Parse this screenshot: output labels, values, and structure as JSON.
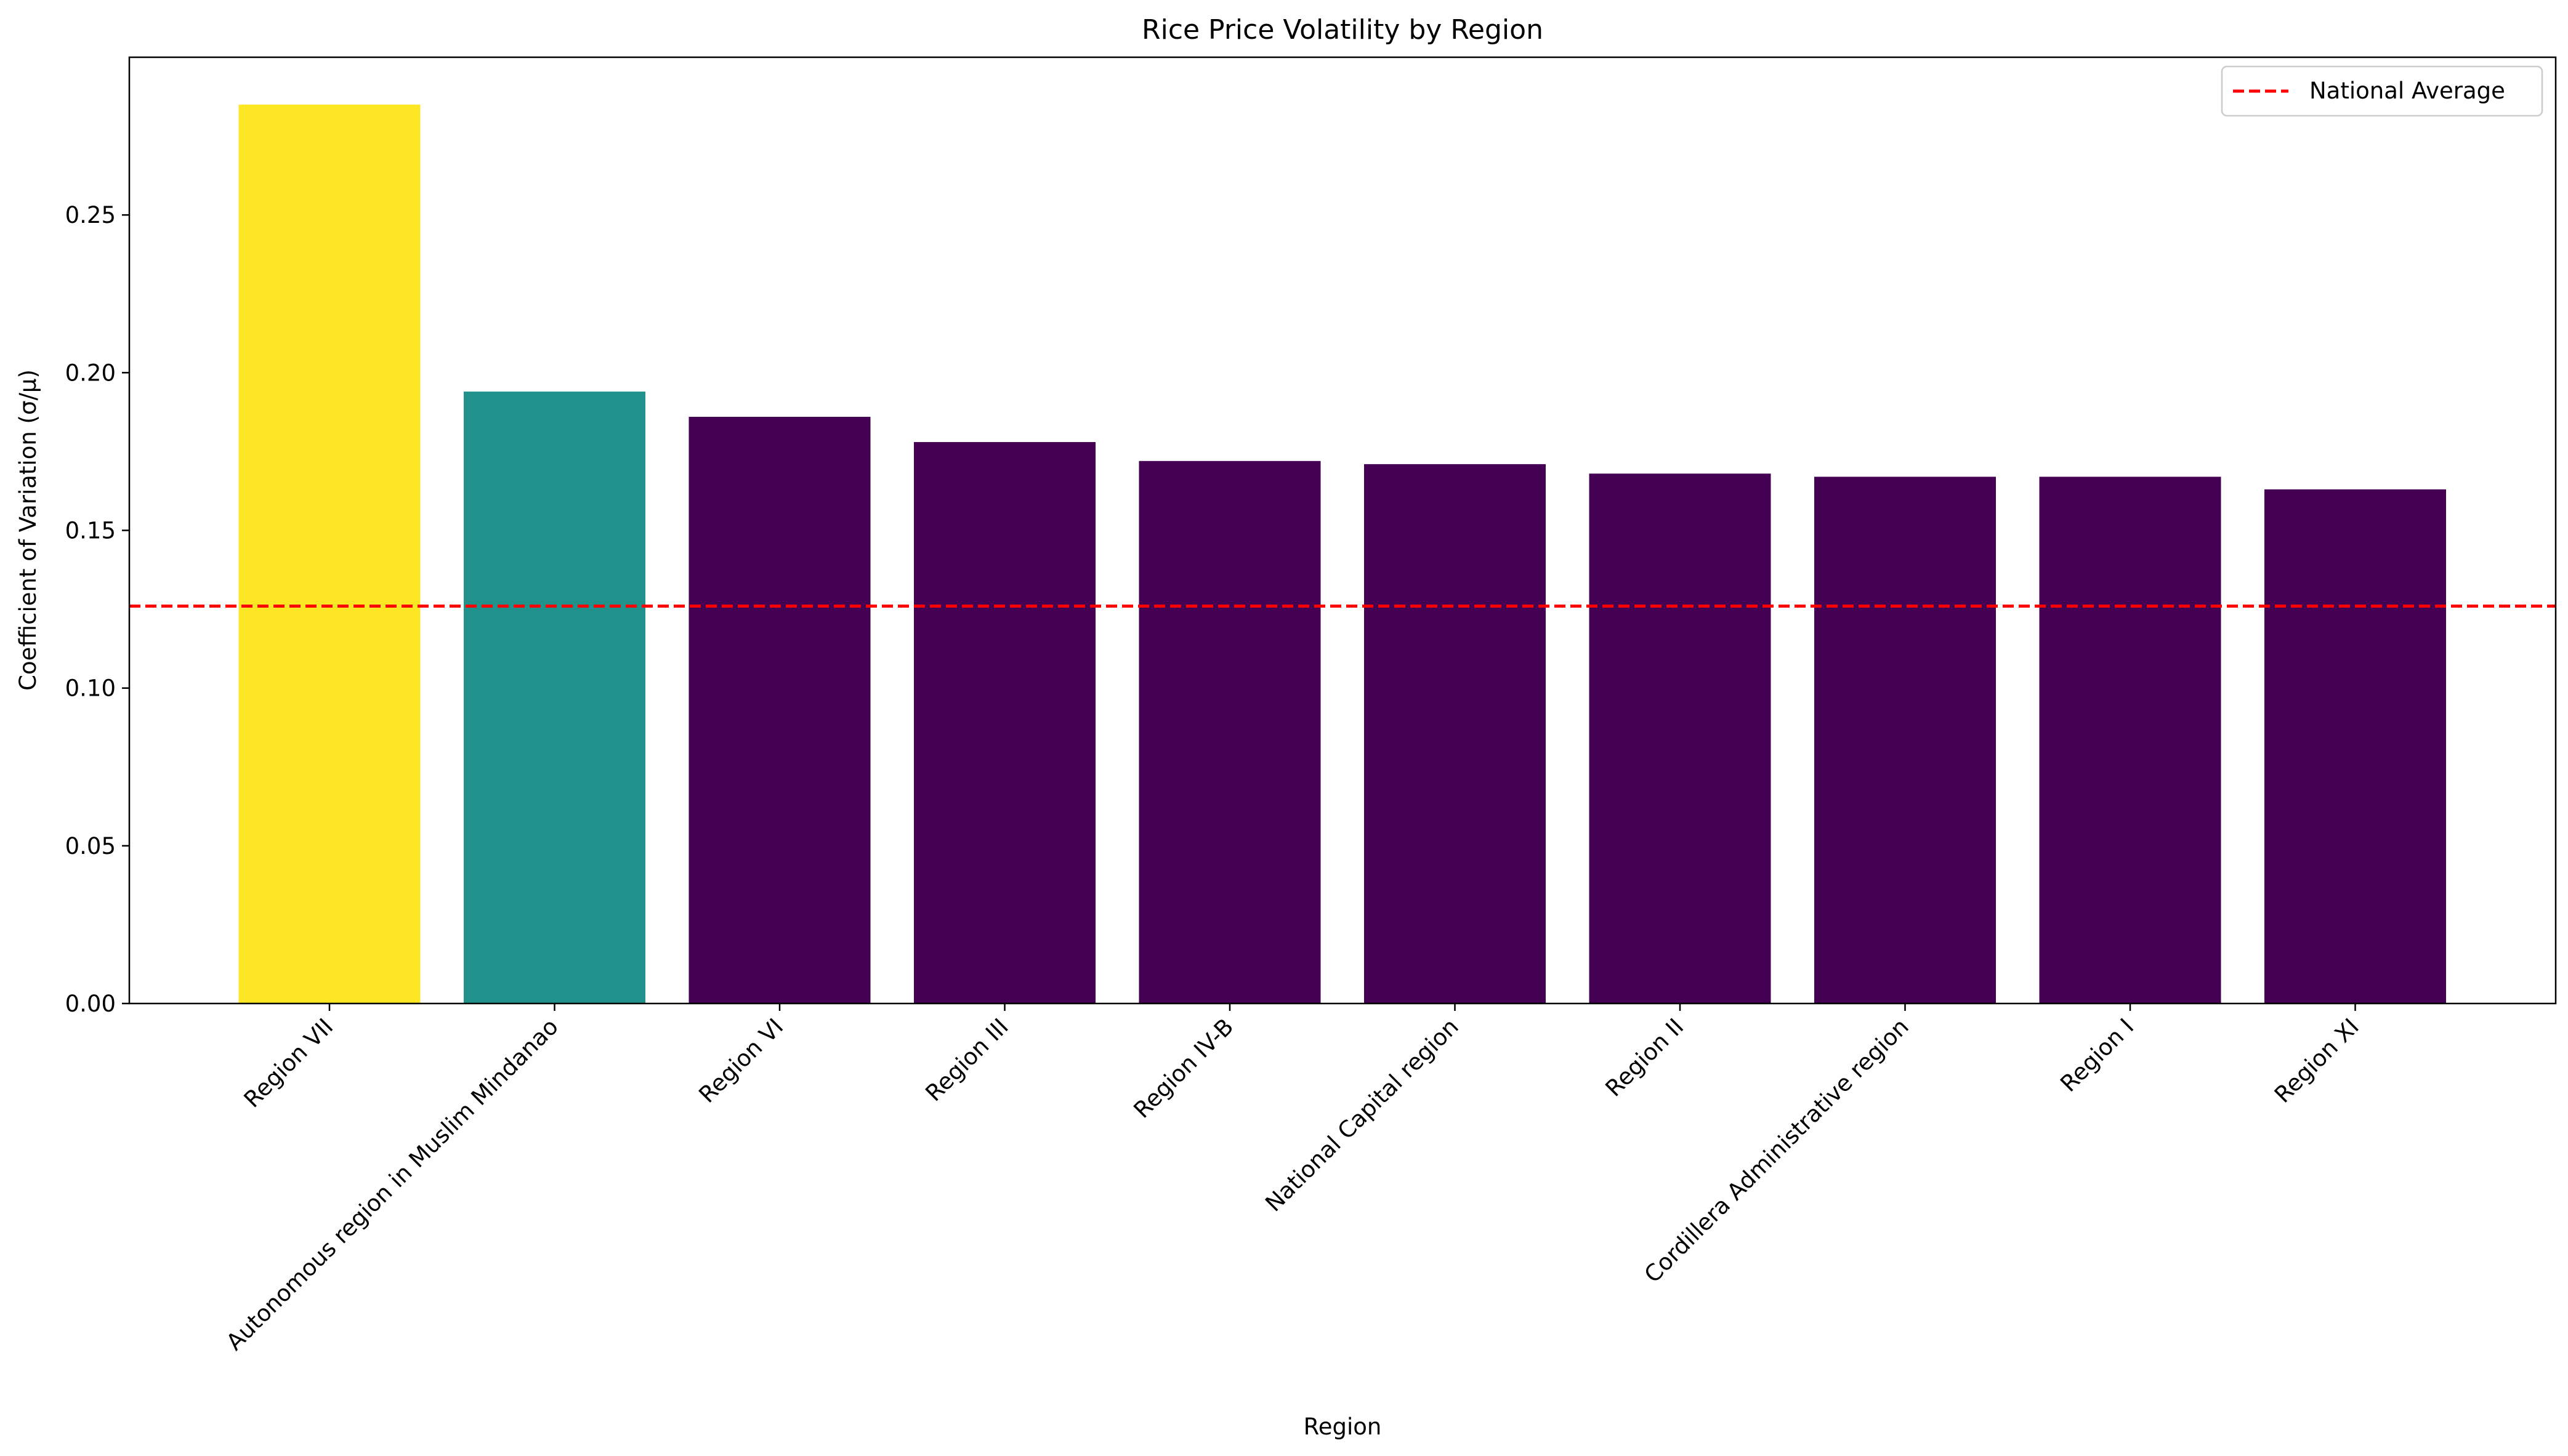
{
  "chart_data": {
    "type": "bar",
    "title": "Rice Price Volatility by Region",
    "xlabel": "Region",
    "ylabel": "Coefficient of Variation (σ/μ)",
    "ylim": [
      0,
      0.3
    ],
    "yticks": [
      0.0,
      0.05,
      0.1,
      0.15,
      0.2,
      0.25
    ],
    "ytick_labels": [
      "0.00",
      "0.05",
      "0.10",
      "0.15",
      "0.20",
      "0.25"
    ],
    "grid": false,
    "legend": {
      "placement": "top-right",
      "entries": [
        "National Average"
      ]
    },
    "categories": [
      "Region VII",
      "Autonomous region in Muslim Mindanao",
      "Region VI",
      "Region III",
      "Region IV-B",
      "National Capital region",
      "Region II",
      "Cordillera Administrative region",
      "Region I",
      "Region XI"
    ],
    "values": [
      0.285,
      0.194,
      0.186,
      0.178,
      0.172,
      0.171,
      0.168,
      0.167,
      0.167,
      0.163
    ],
    "bar_colors": [
      "#fde725",
      "#21918c",
      "#440154",
      "#440154",
      "#440154",
      "#440154",
      "#440154",
      "#440154",
      "#440154",
      "#440154"
    ],
    "reference_line": {
      "name": "National Average",
      "value": 0.126,
      "color": "#ff0000",
      "style": "dashed"
    }
  }
}
